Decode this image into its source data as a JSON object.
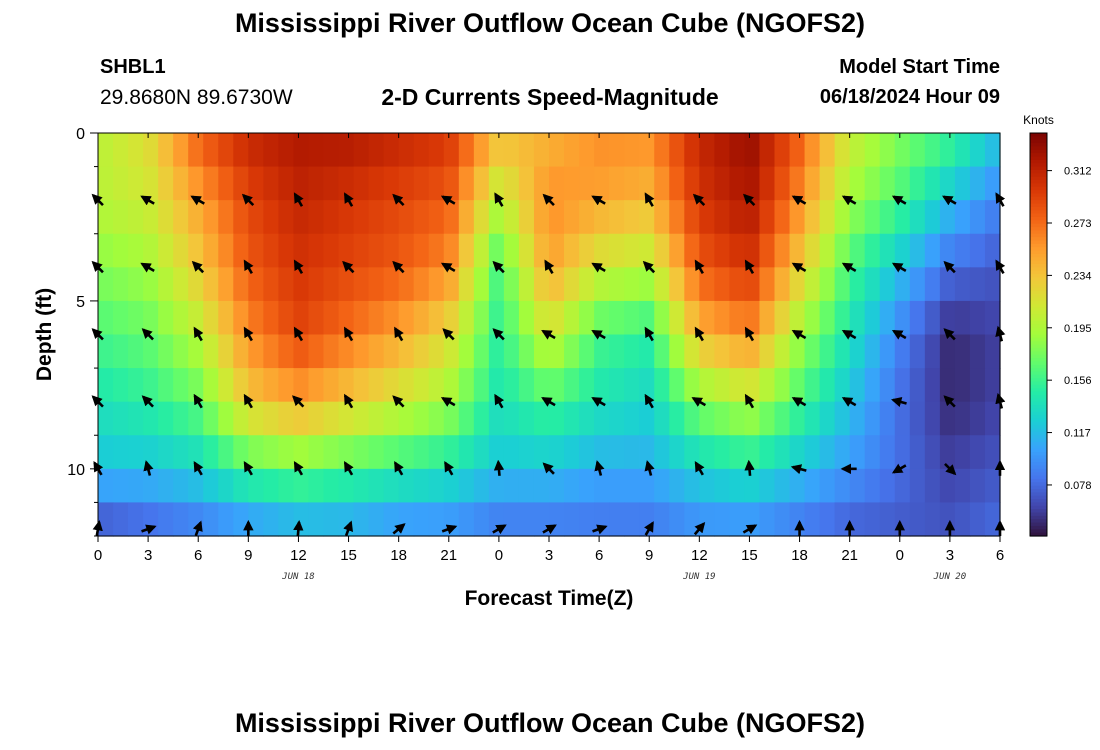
{
  "header": {
    "title": "Mississippi River Outflow Ocean Cube (NGOFS2)",
    "station": "SHBL1",
    "coordinates": "29.8680N  89.6730W",
    "subtitle": "2-D Currents Speed-Magnitude",
    "model_start_label": "Model Start Time",
    "model_start_value": "06/18/2024 Hour 09"
  },
  "footer": {
    "title": "Mississippi River Outflow Ocean Cube (NGOFS2)"
  },
  "chart_data": {
    "type": "heatmap",
    "xlabel": "Forecast Time(Z)",
    "ylabel": "Depth (ft)",
    "x_tick_labels": [
      "0",
      "3",
      "6",
      "9",
      "12",
      "15",
      "18",
      "21",
      "0",
      "3",
      "6",
      "9",
      "12",
      "15",
      "18",
      "21",
      "0",
      "3",
      "6"
    ],
    "date_labels": [
      {
        "hour": 12,
        "label": "JUN 18"
      },
      {
        "hour": 36,
        "label": "JUN 19"
      },
      {
        "hour": 51,
        "label": "JUN 20"
      }
    ],
    "x_hours": [
      0,
      3,
      6,
      9,
      12,
      15,
      18,
      21,
      24,
      27,
      30,
      33,
      36,
      39,
      42,
      45,
      48,
      51,
      54
    ],
    "xlim": [
      0,
      54
    ],
    "y_tick_labels": [
      "0",
      "5",
      "10"
    ],
    "y_ticks": [
      0,
      5,
      10
    ],
    "ylim": [
      0,
      12
    ],
    "depths": [
      0,
      2,
      4,
      6,
      8,
      10,
      12
    ],
    "colorbar": {
      "title": "Knots",
      "tick_labels": [
        "0.312",
        "0.273",
        "0.234",
        "0.195",
        "0.156",
        "0.117",
        "0.078"
      ],
      "ticks": [
        0.312,
        0.273,
        0.234,
        0.195,
        0.156,
        0.117,
        0.078
      ],
      "range": [
        0.04,
        0.34
      ],
      "colors": [
        "#30123b",
        "#4145ab",
        "#4675ed",
        "#39a2fc",
        "#1bcfd4",
        "#24eca6",
        "#61fc6c",
        "#a4fc3b",
        "#d1e834",
        "#f3c63a",
        "#fe9b2d",
        "#f36315",
        "#d93806",
        "#b11901",
        "#7a0402"
      ]
    },
    "speed_grid": [
      [
        0.2,
        0.22,
        0.28,
        0.31,
        0.32,
        0.32,
        0.31,
        0.3,
        0.24,
        0.24,
        0.26,
        0.26,
        0.31,
        0.33,
        0.28,
        0.21,
        0.18,
        0.16,
        0.12
      ],
      [
        0.2,
        0.21,
        0.25,
        0.29,
        0.31,
        0.3,
        0.29,
        0.28,
        0.2,
        0.26,
        0.25,
        0.24,
        0.3,
        0.32,
        0.26,
        0.19,
        0.16,
        0.12,
        0.09
      ],
      [
        0.18,
        0.19,
        0.23,
        0.28,
        0.3,
        0.29,
        0.28,
        0.26,
        0.16,
        0.25,
        0.21,
        0.2,
        0.28,
        0.3,
        0.23,
        0.16,
        0.12,
        0.08,
        0.07
      ],
      [
        0.16,
        0.17,
        0.2,
        0.26,
        0.29,
        0.27,
        0.25,
        0.22,
        0.15,
        0.21,
        0.16,
        0.15,
        0.24,
        0.26,
        0.19,
        0.14,
        0.09,
        0.05,
        0.06
      ],
      [
        0.14,
        0.15,
        0.17,
        0.23,
        0.25,
        0.23,
        0.21,
        0.19,
        0.14,
        0.16,
        0.14,
        0.13,
        0.18,
        0.2,
        0.16,
        0.12,
        0.08,
        0.05,
        0.06
      ],
      [
        0.12,
        0.12,
        0.13,
        0.16,
        0.17,
        0.16,
        0.15,
        0.14,
        0.12,
        0.12,
        0.11,
        0.11,
        0.13,
        0.14,
        0.12,
        0.1,
        0.08,
        0.06,
        0.07
      ],
      [
        0.06,
        0.07,
        0.08,
        0.09,
        0.1,
        0.1,
        0.09,
        0.09,
        0.08,
        0.08,
        0.08,
        0.08,
        0.09,
        0.09,
        0.08,
        0.07,
        0.07,
        0.07,
        0.08
      ]
    ],
    "arrow_depths": [
      2,
      4,
      6,
      8,
      10,
      12
    ],
    "arrow_directions_deg": [
      [
        315,
        300,
        300,
        315,
        330,
        330,
        315,
        300,
        330,
        315,
        300,
        330,
        315,
        315,
        300,
        300,
        300,
        300,
        330
      ],
      [
        315,
        300,
        315,
        330,
        330,
        315,
        315,
        300,
        315,
        330,
        300,
        315,
        330,
        330,
        300,
        300,
        300,
        315,
        330
      ],
      [
        315,
        315,
        330,
        330,
        330,
        330,
        330,
        315,
        315,
        300,
        300,
        330,
        330,
        330,
        300,
        300,
        300,
        315,
        345
      ],
      [
        315,
        315,
        330,
        330,
        315,
        330,
        315,
        300,
        330,
        300,
        300,
        330,
        300,
        330,
        300,
        300,
        285,
        315,
        345
      ],
      [
        330,
        345,
        330,
        330,
        330,
        330,
        330,
        330,
        355,
        315,
        345,
        345,
        330,
        355,
        285,
        270,
        240,
        135,
        0
      ],
      [
        10,
        70,
        20,
        0,
        5,
        20,
        50,
        70,
        60,
        60,
        70,
        30,
        40,
        60,
        0,
        0,
        0,
        0,
        0
      ]
    ]
  }
}
